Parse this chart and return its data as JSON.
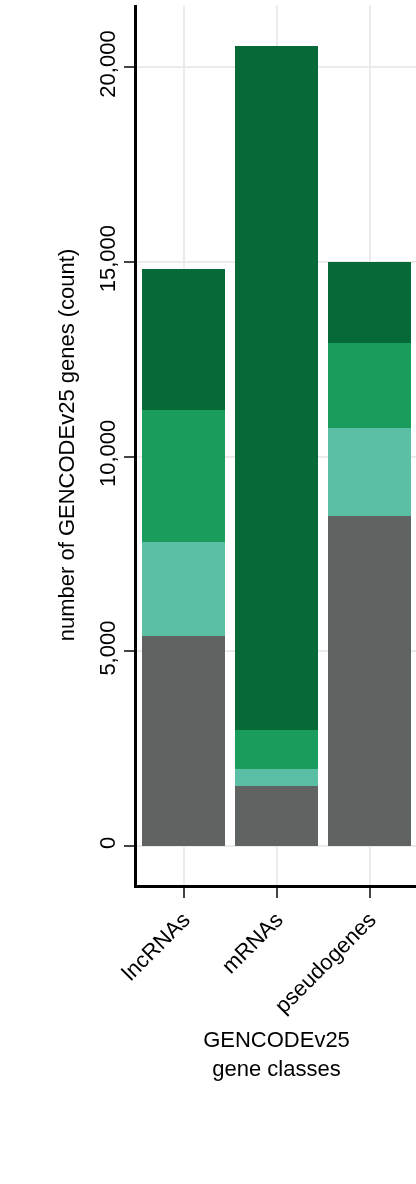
{
  "chart_data": {
    "type": "bar",
    "stacked": true,
    "xlabel": "GENCODEv25\ngene classes",
    "ylabel": "number of GENCODEv25 genes (count)",
    "categories": [
      "lncRNAs",
      "mRNAs",
      "pseudogenes"
    ],
    "series": [
      {
        "color": "#5f6361",
        "values": [
          5390,
          1540,
          8470
        ]
      },
      {
        "color": "#5bbfa5",
        "values": [
          2410,
          440,
          2260
        ]
      },
      {
        "color": "#1a9c5c",
        "values": [
          3390,
          1000,
          2180
        ]
      },
      {
        "color": "#066a38",
        "values": [
          3620,
          17560,
          2090
        ]
      }
    ],
    "ylim": [
      -1000,
      21600
    ],
    "yticks": [
      {
        "value": 0,
        "label": "0"
      },
      {
        "value": 5000,
        "label": "5,000"
      },
      {
        "value": 10000,
        "label": "10,000"
      },
      {
        "value": 15000,
        "label": "15,000"
      },
      {
        "value": 20000,
        "label": "20,000"
      }
    ],
    "grid": true
  }
}
